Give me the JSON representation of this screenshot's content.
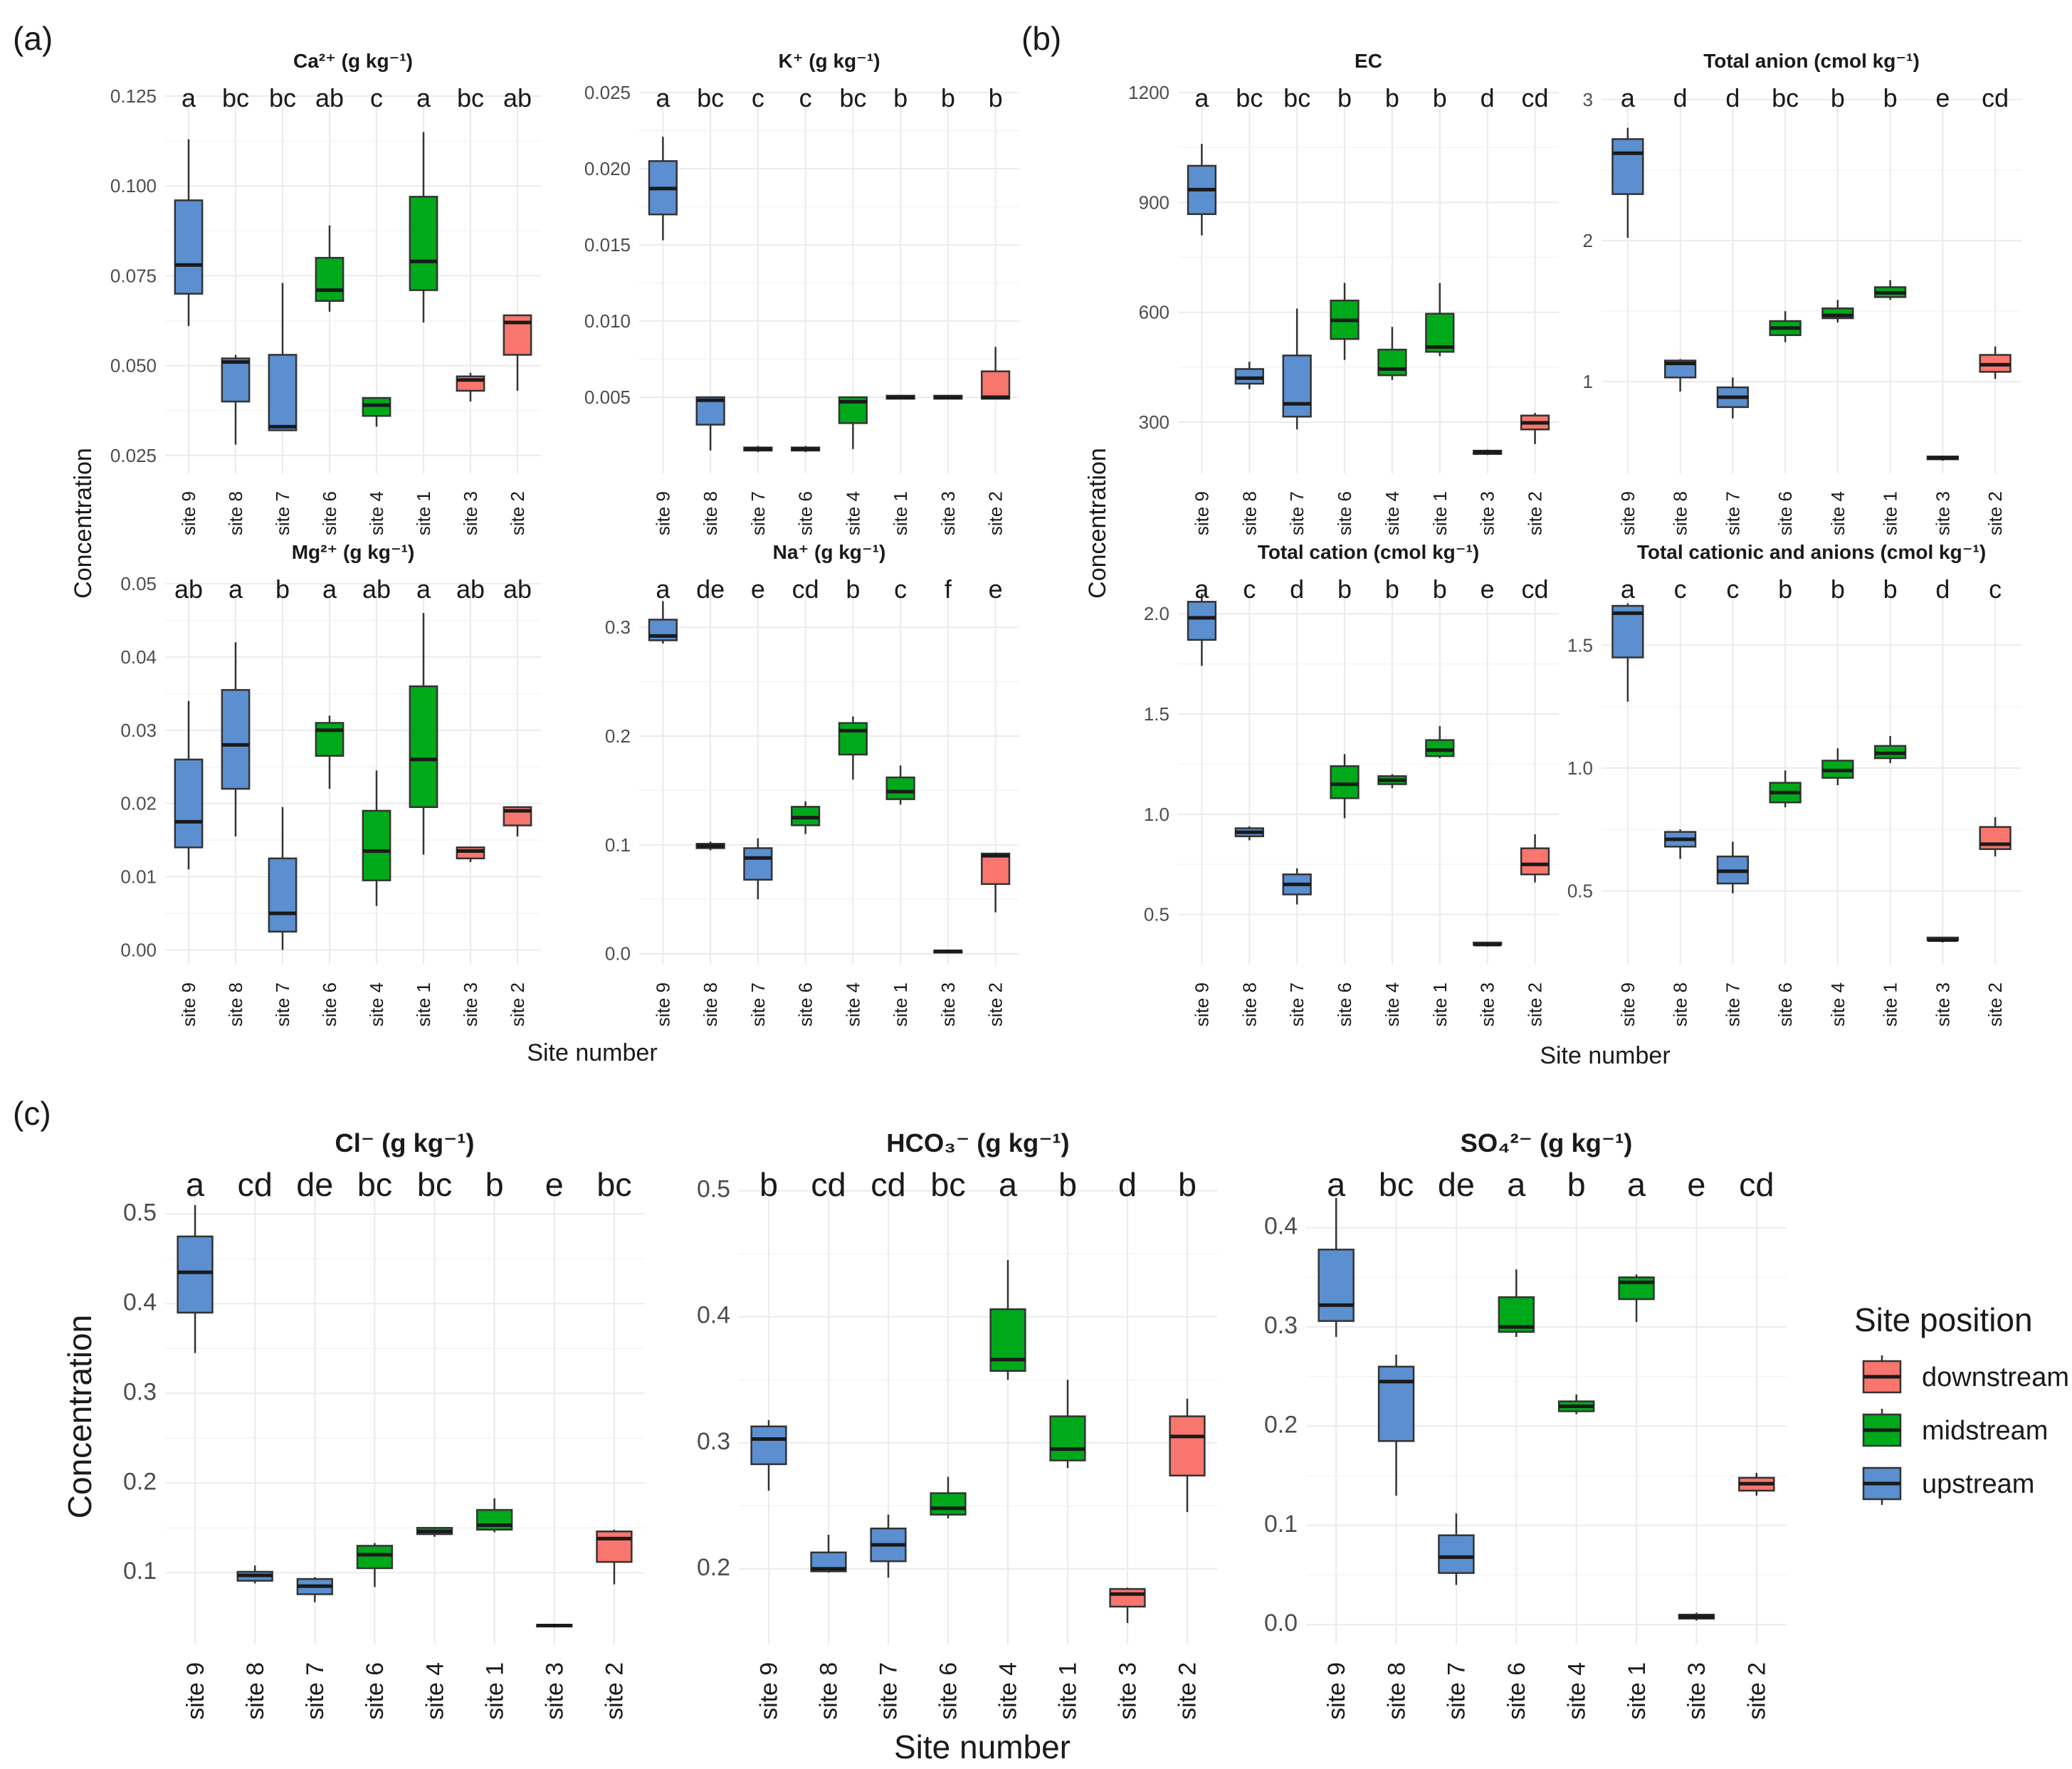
{
  "figure": {
    "panel_labels": [
      "(a)",
      "(b)",
      "(c)"
    ],
    "y_axis_label": "Concentration",
    "x_axis_label": "Site number",
    "sites": [
      "site 9",
      "site 8",
      "site 7",
      "site 6",
      "site 4",
      "site 1",
      "site 3",
      "site 2"
    ],
    "positions": [
      "upstream",
      "upstream",
      "upstream",
      "midstream",
      "midstream",
      "midstream",
      "downstream",
      "downstream"
    ]
  },
  "legend": {
    "title": "Site position",
    "items": [
      {
        "label": "downstream",
        "color": "#F8766D"
      },
      {
        "label": "midstream",
        "color": "#00A91A"
      },
      {
        "label": "upstream",
        "color": "#5B8FD0"
      }
    ]
  },
  "colors": {
    "upstream": "#5B8FD0",
    "midstream": "#00A91A",
    "downstream": "#F8766D"
  },
  "chart_data": [
    {
      "id": "ca",
      "type": "box",
      "group": "a",
      "title": "Ca²⁺ (g kg⁻¹)",
      "ylim": [
        0.02,
        0.126
      ],
      "yticks": [
        0.025,
        0.05,
        0.075,
        0.1,
        0.125
      ],
      "ytick_labels": [
        "0.025",
        "0.050",
        "0.075",
        "0.100",
        "0.125"
      ],
      "letters": [
        "a",
        "bc",
        "bc",
        "ab",
        "c",
        "a",
        "bc",
        "ab"
      ],
      "boxes": [
        [
          0.061,
          0.07,
          0.078,
          0.096,
          0.113
        ],
        [
          0.028,
          0.04,
          0.051,
          0.052,
          0.053
        ],
        [
          0.032,
          0.032,
          0.033,
          0.053,
          0.073
        ],
        [
          0.065,
          0.068,
          0.071,
          0.08,
          0.089
        ],
        [
          0.033,
          0.036,
          0.039,
          0.041,
          0.041
        ],
        [
          0.062,
          0.071,
          0.079,
          0.097,
          0.115
        ],
        [
          0.04,
          0.043,
          0.046,
          0.047,
          0.048
        ],
        [
          0.043,
          0.053,
          0.062,
          0.064,
          0.064
        ]
      ]
    },
    {
      "id": "k",
      "type": "box",
      "group": "a",
      "title": "K⁺ (g kg⁻¹)",
      "ylim": [
        0,
        0.025
      ],
      "yticks": [
        0.005,
        0.01,
        0.015,
        0.02,
        0.025
      ],
      "ytick_labels": [
        "0.005",
        "0.010",
        "0.015",
        "0.020",
        "0.025"
      ],
      "letters": [
        "a",
        "bc",
        "c",
        "c",
        "bc",
        "b",
        "b",
        "b"
      ],
      "boxes": [
        [
          0.0153,
          0.017,
          0.0187,
          0.0205,
          0.0221
        ],
        [
          0.0015,
          0.0032,
          0.0048,
          0.005,
          0.005
        ],
        [
          0.0014,
          0.0015,
          0.0016,
          0.0017,
          0.0018
        ],
        [
          0.0014,
          0.0015,
          0.0016,
          0.0017,
          0.0018
        ],
        [
          0.0016,
          0.0033,
          0.0047,
          0.005,
          0.005
        ],
        [
          0.0049,
          0.0049,
          0.005,
          0.0051,
          0.0051
        ],
        [
          0.0049,
          0.0049,
          0.005,
          0.0051,
          0.0051
        ],
        [
          0.0049,
          0.0049,
          0.005,
          0.0067,
          0.0083
        ]
      ]
    },
    {
      "id": "mg",
      "type": "box",
      "group": "a",
      "title": "Mg²⁺ (g kg⁻¹)",
      "ylim": [
        -0.002,
        0.05
      ],
      "yticks": [
        0,
        0.01,
        0.02,
        0.03,
        0.04,
        0.05
      ],
      "ytick_labels": [
        "0.00",
        "0.01",
        "0.02",
        "0.03",
        "0.04",
        "0.05"
      ],
      "letters": [
        "ab",
        "a",
        "b",
        "a",
        "ab",
        "a",
        "ab",
        "ab"
      ],
      "boxes": [
        [
          0.011,
          0.014,
          0.0175,
          0.026,
          0.034
        ],
        [
          0.0155,
          0.022,
          0.028,
          0.0355,
          0.042
        ],
        [
          0.0,
          0.0025,
          0.005,
          0.0125,
          0.0195
        ],
        [
          0.022,
          0.0265,
          0.03,
          0.031,
          0.032
        ],
        [
          0.006,
          0.0095,
          0.0135,
          0.019,
          0.0245
        ],
        [
          0.013,
          0.0195,
          0.026,
          0.036,
          0.046
        ],
        [
          0.012,
          0.0125,
          0.0135,
          0.014,
          0.014
        ],
        [
          0.0155,
          0.017,
          0.019,
          0.0195,
          0.0195
        ]
      ]
    },
    {
      "id": "na",
      "type": "box",
      "group": "a",
      "title": "Na⁺ (g kg⁻¹)",
      "ylim": [
        -0.01,
        0.34
      ],
      "yticks": [
        0,
        0.1,
        0.2,
        0.3
      ],
      "ytick_labels": [
        "0.0",
        "0.1",
        "0.2",
        "0.3"
      ],
      "letters": [
        "a",
        "de",
        "e",
        "cd",
        "b",
        "c",
        "f",
        "e"
      ],
      "boxes": [
        [
          0.285,
          0.288,
          0.292,
          0.307,
          0.324
        ],
        [
          0.095,
          0.097,
          0.099,
          0.101,
          0.103
        ],
        [
          0.05,
          0.068,
          0.088,
          0.097,
          0.106
        ],
        [
          0.11,
          0.118,
          0.125,
          0.135,
          0.14
        ],
        [
          0.16,
          0.183,
          0.205,
          0.212,
          0.218
        ],
        [
          0.137,
          0.142,
          0.149,
          0.162,
          0.173
        ],
        [
          0.001,
          0.001,
          0.002,
          0.003,
          0.003
        ],
        [
          0.038,
          0.064,
          0.09,
          0.092,
          0.093
        ]
      ]
    },
    {
      "id": "ec",
      "type": "box",
      "group": "b",
      "title": "EC",
      "ylim": [
        160,
        1200
      ],
      "yticks": [
        300,
        600,
        900,
        1200
      ],
      "ytick_labels": [
        "300",
        "600",
        "900",
        "1200"
      ],
      "letters": [
        "a",
        "bc",
        "bc",
        "b",
        "b",
        "b",
        "d",
        "cd"
      ],
      "boxes": [
        [
          810,
          868,
          935,
          1000,
          1060
        ],
        [
          390,
          405,
          420,
          445,
          465
        ],
        [
          280,
          315,
          350,
          482,
          610
        ],
        [
          470,
          527,
          578,
          632,
          680
        ],
        [
          415,
          428,
          445,
          498,
          560
        ],
        [
          480,
          492,
          505,
          596,
          680
        ],
        [
          210,
          213,
          218,
          222,
          225
        ],
        [
          240,
          280,
          298,
          318,
          325
        ]
      ]
    },
    {
      "id": "tanion",
      "type": "box",
      "group": "b",
      "title": "Total anion (cmol kg⁻¹)",
      "ylim": [
        0.35,
        3.05
      ],
      "yticks": [
        1,
        2,
        3
      ],
      "ytick_labels": [
        "1",
        "2",
        "3"
      ],
      "letters": [
        "a",
        "d",
        "d",
        "bc",
        "b",
        "b",
        "e",
        "cd"
      ],
      "boxes": [
        [
          2.02,
          2.33,
          2.62,
          2.72,
          2.8
        ],
        [
          0.93,
          1.03,
          1.13,
          1.15,
          1.16
        ],
        [
          0.74,
          0.82,
          0.89,
          0.96,
          1.03
        ],
        [
          1.28,
          1.33,
          1.38,
          1.43,
          1.5
        ],
        [
          1.42,
          1.45,
          1.47,
          1.52,
          1.58
        ],
        [
          1.58,
          1.6,
          1.63,
          1.67,
          1.72
        ],
        [
          0.44,
          0.45,
          0.46,
          0.47,
          0.47
        ],
        [
          1.02,
          1.07,
          1.12,
          1.19,
          1.25
        ]
      ]
    },
    {
      "id": "tcation",
      "type": "box",
      "group": "b",
      "title": "Total cation (cmol kg⁻¹)",
      "ylim": [
        0.25,
        2.15
      ],
      "yticks": [
        0.5,
        1.0,
        1.5,
        2.0
      ],
      "ytick_labels": [
        "0.5",
        "1.0",
        "1.5",
        "2.0"
      ],
      "letters": [
        "a",
        "c",
        "d",
        "b",
        "b",
        "b",
        "e",
        "cd"
      ],
      "boxes": [
        [
          1.74,
          1.87,
          1.98,
          2.06,
          2.1
        ],
        [
          0.87,
          0.89,
          0.91,
          0.93,
          0.94
        ],
        [
          0.55,
          0.6,
          0.65,
          0.7,
          0.73
        ],
        [
          0.98,
          1.08,
          1.15,
          1.24,
          1.3
        ],
        [
          1.13,
          1.15,
          1.17,
          1.19,
          1.2
        ],
        [
          1.28,
          1.29,
          1.32,
          1.37,
          1.44
        ],
        [
          0.34,
          0.35,
          0.35,
          0.36,
          0.36
        ],
        [
          0.66,
          0.7,
          0.75,
          0.83,
          0.9
        ]
      ]
    },
    {
      "id": "tcatan",
      "type": "box",
      "group": "b",
      "title": "Total cationic and anions (cmol kg⁻¹)",
      "ylim": [
        0.2,
        1.75
      ],
      "yticks": [
        0.5,
        1.0,
        1.5
      ],
      "ytick_labels": [
        "0.5",
        "1.0",
        "1.5"
      ],
      "letters": [
        "a",
        "c",
        "c",
        "b",
        "b",
        "b",
        "d",
        "c"
      ],
      "boxes": [
        [
          1.27,
          1.45,
          1.63,
          1.66,
          1.67
        ],
        [
          0.63,
          0.68,
          0.71,
          0.74,
          0.75
        ],
        [
          0.49,
          0.53,
          0.58,
          0.64,
          0.7
        ],
        [
          0.84,
          0.86,
          0.9,
          0.94,
          0.99
        ],
        [
          0.93,
          0.96,
          0.99,
          1.03,
          1.08
        ],
        [
          1.02,
          1.04,
          1.06,
          1.09,
          1.13
        ],
        [
          0.29,
          0.3,
          0.3,
          0.31,
          0.31
        ],
        [
          0.64,
          0.67,
          0.69,
          0.76,
          0.8
        ]
      ]
    },
    {
      "id": "cl",
      "type": "box",
      "group": "c",
      "title": "Cl⁻ (g kg⁻¹)",
      "ylim": [
        0.02,
        0.54
      ],
      "yticks": [
        0.1,
        0.2,
        0.3,
        0.4,
        0.5
      ],
      "ytick_labels": [
        "0.1",
        "0.2",
        "0.3",
        "0.4",
        "0.5"
      ],
      "letters": [
        "a",
        "cd",
        "de",
        "bc",
        "bc",
        "b",
        "e",
        "bc"
      ],
      "boxes": [
        [
          0.345,
          0.39,
          0.435,
          0.475,
          0.51
        ],
        [
          0.088,
          0.091,
          0.097,
          0.101,
          0.108
        ],
        [
          0.067,
          0.076,
          0.085,
          0.093,
          0.095
        ],
        [
          0.084,
          0.105,
          0.12,
          0.13,
          0.133
        ],
        [
          0.14,
          0.143,
          0.146,
          0.15,
          0.151
        ],
        [
          0.145,
          0.148,
          0.153,
          0.17,
          0.183
        ],
        [
          0.039,
          0.04,
          0.041,
          0.042,
          0.042
        ],
        [
          0.087,
          0.112,
          0.138,
          0.146,
          0.148
        ]
      ]
    },
    {
      "id": "hco3",
      "type": "box",
      "group": "c",
      "title": "HCO₃⁻ (g kg⁻¹)",
      "ylim": [
        0.14,
        0.51
      ],
      "yticks": [
        0.2,
        0.3,
        0.4,
        0.5
      ],
      "ytick_labels": [
        "0.2",
        "0.3",
        "0.4",
        "0.5"
      ],
      "letters": [
        "b",
        "cd",
        "cd",
        "bc",
        "a",
        "b",
        "d",
        "b"
      ],
      "boxes": [
        [
          0.262,
          0.283,
          0.303,
          0.313,
          0.318
        ],
        [
          0.197,
          0.198,
          0.2,
          0.213,
          0.227
        ],
        [
          0.193,
          0.206,
          0.219,
          0.232,
          0.243
        ],
        [
          0.24,
          0.243,
          0.248,
          0.26,
          0.273
        ],
        [
          0.35,
          0.357,
          0.366,
          0.406,
          0.445
        ],
        [
          0.28,
          0.286,
          0.295,
          0.321,
          0.35
        ],
        [
          0.157,
          0.17,
          0.18,
          0.184,
          0.185
        ],
        [
          0.245,
          0.274,
          0.305,
          0.321,
          0.335
        ]
      ]
    },
    {
      "id": "so4",
      "type": "box",
      "group": "c",
      "title": "SO₄²⁻ (g kg⁻¹)",
      "ylim": [
        -0.02,
        0.45
      ],
      "yticks": [
        0,
        0.1,
        0.2,
        0.3,
        0.4
      ],
      "ytick_labels": [
        "0.0",
        "0.1",
        "0.2",
        "0.3",
        "0.4"
      ],
      "letters": [
        "a",
        "bc",
        "de",
        "a",
        "b",
        "a",
        "e",
        "cd"
      ],
      "boxes": [
        [
          0.29,
          0.306,
          0.322,
          0.378,
          0.43
        ],
        [
          0.13,
          0.185,
          0.245,
          0.26,
          0.272
        ],
        [
          0.04,
          0.052,
          0.068,
          0.09,
          0.112
        ],
        [
          0.29,
          0.295,
          0.3,
          0.33,
          0.358
        ],
        [
          0.212,
          0.215,
          0.22,
          0.225,
          0.232
        ],
        [
          0.305,
          0.328,
          0.345,
          0.35,
          0.353
        ],
        [
          0.004,
          0.006,
          0.008,
          0.01,
          0.012
        ],
        [
          0.13,
          0.135,
          0.142,
          0.148,
          0.153
        ]
      ]
    }
  ]
}
